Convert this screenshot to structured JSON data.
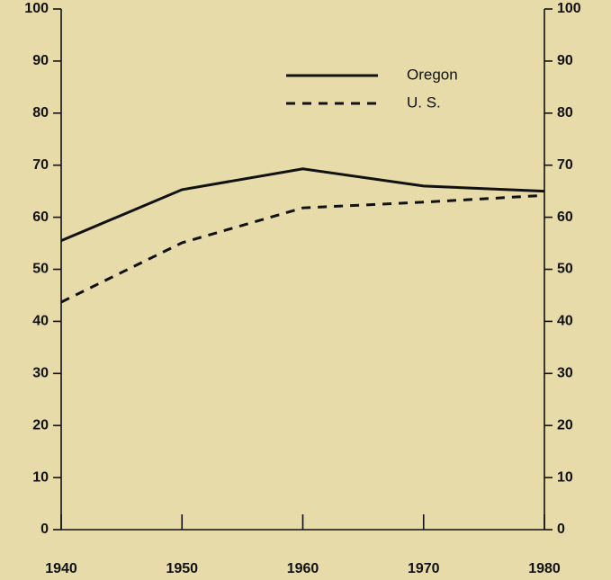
{
  "chart_data": {
    "type": "line",
    "x": [
      1940,
      1950,
      1960,
      1970,
      1980
    ],
    "series": [
      {
        "name": "Oregon",
        "color": "#111111",
        "dash": "solid",
        "values": [
          55.5,
          65.3,
          69.3,
          66,
          65
        ]
      },
      {
        "name": "U. S.",
        "color": "#111111",
        "dash": "dashed",
        "values": [
          43.7,
          55.1,
          61.8,
          62.9,
          64.2
        ]
      }
    ],
    "xlim": [
      1940,
      1980
    ],
    "xticks": [
      1940,
      1950,
      1960,
      1970,
      1980
    ],
    "ylim": [
      0,
      100
    ],
    "yticks": [
      0,
      10,
      20,
      30,
      40,
      50,
      60,
      70,
      80,
      90,
      100
    ],
    "y2lim": [
      0,
      100
    ],
    "y2ticks": [
      0,
      10,
      20,
      30,
      40,
      50,
      60,
      70,
      80,
      90,
      100
    ],
    "legend": "top-right"
  }
}
